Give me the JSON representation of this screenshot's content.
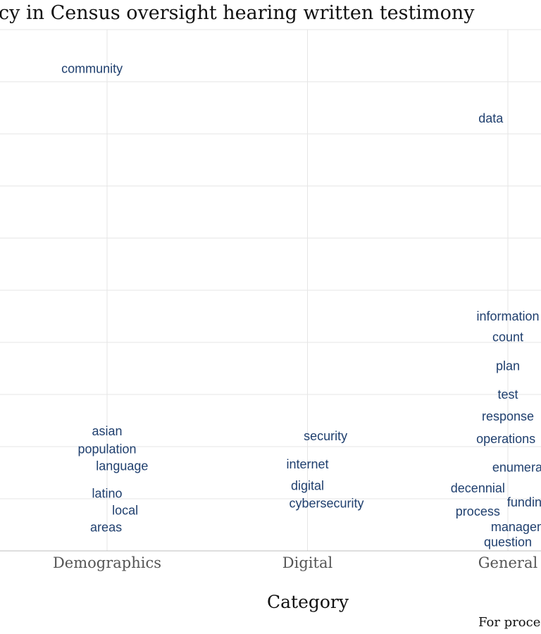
{
  "chart_data": {
    "type": "scatter",
    "title": "cy in Census oversight hearing written testimony",
    "xlabel": "Category",
    "caption": "For proces",
    "word_color": "#1f3f6e",
    "categories": [
      "Demographics",
      "Digital",
      "General"
    ],
    "grid": true,
    "ylim": [
      0,
      10
    ],
    "points": [
      {
        "word": "community",
        "category": "Demographics",
        "x_offset": -0.075,
        "y": 9.25
      },
      {
        "word": "asian",
        "category": "Demographics",
        "x_offset": 0.0,
        "y": 2.3
      },
      {
        "word": "population",
        "category": "Demographics",
        "x_offset": 0.0,
        "y": 1.95
      },
      {
        "word": "language",
        "category": "Demographics",
        "x_offset": 0.075,
        "y": 1.63
      },
      {
        "word": "latino",
        "category": "Demographics",
        "x_offset": 0.0,
        "y": 1.1
      },
      {
        "word": "local",
        "category": "Demographics",
        "x_offset": 0.09,
        "y": 0.78
      },
      {
        "word": "areas",
        "category": "Demographics",
        "x_offset": -0.005,
        "y": 0.45
      },
      {
        "word": "security",
        "category": "Digital",
        "x_offset": 0.09,
        "y": 2.2
      },
      {
        "word": "internet",
        "category": "Digital",
        "x_offset": 0.0,
        "y": 1.66
      },
      {
        "word": "digital",
        "category": "Digital",
        "x_offset": 0.0,
        "y": 1.25
      },
      {
        "word": "cybersecurity",
        "category": "Digital",
        "x_offset": 0.095,
        "y": 0.91
      },
      {
        "word": "data",
        "category": "General",
        "x_offset": -0.085,
        "y": 8.3
      },
      {
        "word": "information",
        "category": "General",
        "x_offset": 0.0,
        "y": 4.5
      },
      {
        "word": "count",
        "category": "General",
        "x_offset": 0.0,
        "y": 4.1
      },
      {
        "word": "plan",
        "category": "General",
        "x_offset": 0.0,
        "y": 3.55
      },
      {
        "word": "test",
        "category": "General",
        "x_offset": 0.0,
        "y": 3.0
      },
      {
        "word": "response",
        "category": "General",
        "x_offset": 0.0,
        "y": 2.58
      },
      {
        "word": "operations",
        "category": "General",
        "x_offset": -0.01,
        "y": 2.15
      },
      {
        "word": "enumerators",
        "category": "General",
        "x_offset": 0.1,
        "y": 1.6
      },
      {
        "word": "decennial",
        "category": "General",
        "x_offset": -0.15,
        "y": 1.2
      },
      {
        "word": "funding",
        "category": "General",
        "x_offset": 0.1,
        "y": 0.93
      },
      {
        "word": "process",
        "category": "General",
        "x_offset": -0.15,
        "y": 0.76
      },
      {
        "word": "management",
        "category": "General",
        "x_offset": 0.1,
        "y": 0.46
      },
      {
        "word": "question",
        "category": "General",
        "x_offset": 0.0,
        "y": 0.17
      }
    ]
  }
}
